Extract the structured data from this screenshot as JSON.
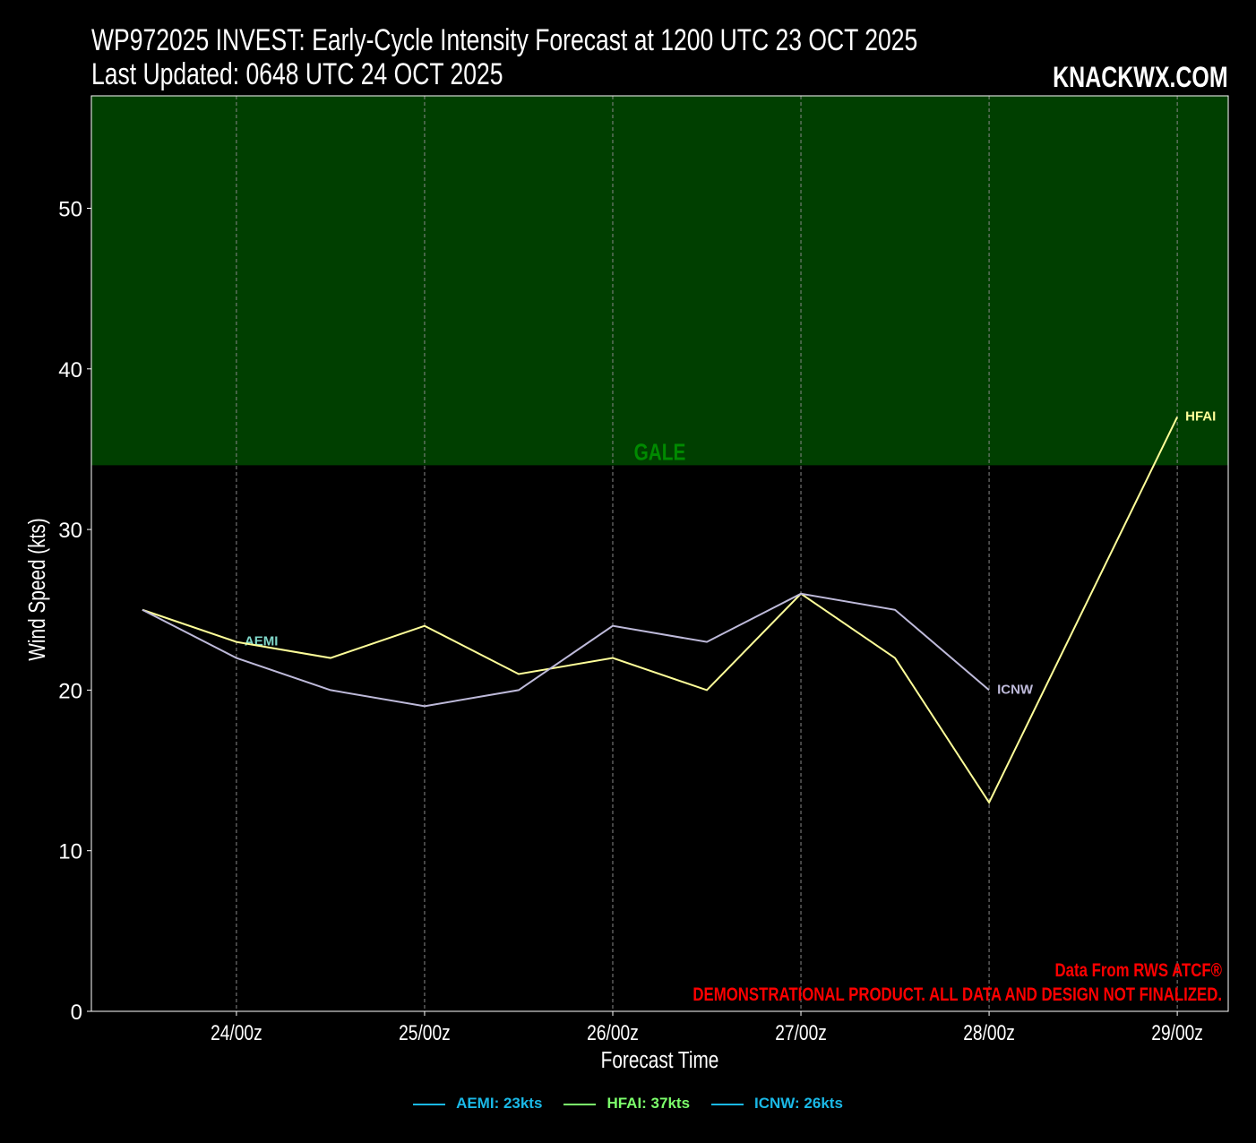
{
  "header": {
    "title": "WP972025 INVEST: Early-Cycle Intensity Forecast at 1200 UTC 23 OCT 2025",
    "subtitle": "Last Updated: 0648 UTC 24 OCT 2025",
    "brand": "KNACKWX.COM"
  },
  "chart_data": {
    "type": "line",
    "title": "WP972025 INVEST: Early-Cycle Intensity Forecast at 1200 UTC 23 OCT 2025",
    "xlabel": "Forecast Time",
    "ylabel": "Wind Speed (kts)",
    "ylim": [
      0,
      57
    ],
    "xlim": [
      "2025-10-23 05:30",
      "2025-10-29 06:30"
    ],
    "yticks": [
      0,
      10,
      20,
      30,
      40,
      50
    ],
    "xticks": [
      {
        "x": "2025-10-24 00:00",
        "label": "24/00z"
      },
      {
        "x": "2025-10-25 00:00",
        "label": "25/00z"
      },
      {
        "x": "2025-10-26 00:00",
        "label": "26/00z"
      },
      {
        "x": "2025-10-27 00:00",
        "label": "27/00z"
      },
      {
        "x": "2025-10-28 00:00",
        "label": "28/00z"
      },
      {
        "x": "2025-10-29 00:00",
        "label": "29/00z"
      }
    ],
    "grid": "vertical dashed",
    "shaded_band": {
      "label": "GALE",
      "from": 34,
      "to": 57,
      "color": "#003f00",
      "label_color": "#008a00"
    },
    "series": [
      {
        "name": "AEMI",
        "color": "#7fd6c8",
        "x": [
          "2025-10-24 00:00"
        ],
        "y": [
          23
        ]
      },
      {
        "name": "HFAI",
        "color": "#ffff99",
        "x": [
          "2025-10-23 12:00",
          "2025-10-24 00:00",
          "2025-10-24 12:00",
          "2025-10-25 00:00",
          "2025-10-25 12:00",
          "2025-10-26 00:00",
          "2025-10-26 12:00",
          "2025-10-27 00:00",
          "2025-10-27 12:00",
          "2025-10-28 00:00",
          "2025-10-29 00:00"
        ],
        "y": [
          25,
          23,
          22,
          24,
          21,
          22,
          20,
          26,
          22,
          13,
          37
        ]
      },
      {
        "name": "ICNW",
        "color": "#bebada",
        "x": [
          "2025-10-23 12:00",
          "2025-10-24 00:00",
          "2025-10-24 12:00",
          "2025-10-25 00:00",
          "2025-10-25 12:00",
          "2025-10-26 00:00",
          "2025-10-26 12:00",
          "2025-10-27 00:00",
          "2025-10-27 12:00",
          "2025-10-28 00:00"
        ],
        "y": [
          25,
          22,
          20,
          19,
          20,
          24,
          23,
          26,
          25,
          20
        ]
      }
    ],
    "legend": {
      "placement": "bottom-center",
      "entries": [
        {
          "label": "AEMI: 23kts",
          "color": "#1ab8e6"
        },
        {
          "label": "HFAI: 37kts",
          "color": "#7cff6b"
        },
        {
          "label": "ICNW: 26kts",
          "color": "#1ab8e6"
        }
      ]
    },
    "annotations": [
      {
        "text": "Data From RWS ATCF®",
        "color": "#ff0000"
      },
      {
        "text": "DEMONSTRATIONAL PRODUCT. ALL DATA AND DESIGN NOT FINALIZED.",
        "color": "#ff0000"
      }
    ]
  }
}
